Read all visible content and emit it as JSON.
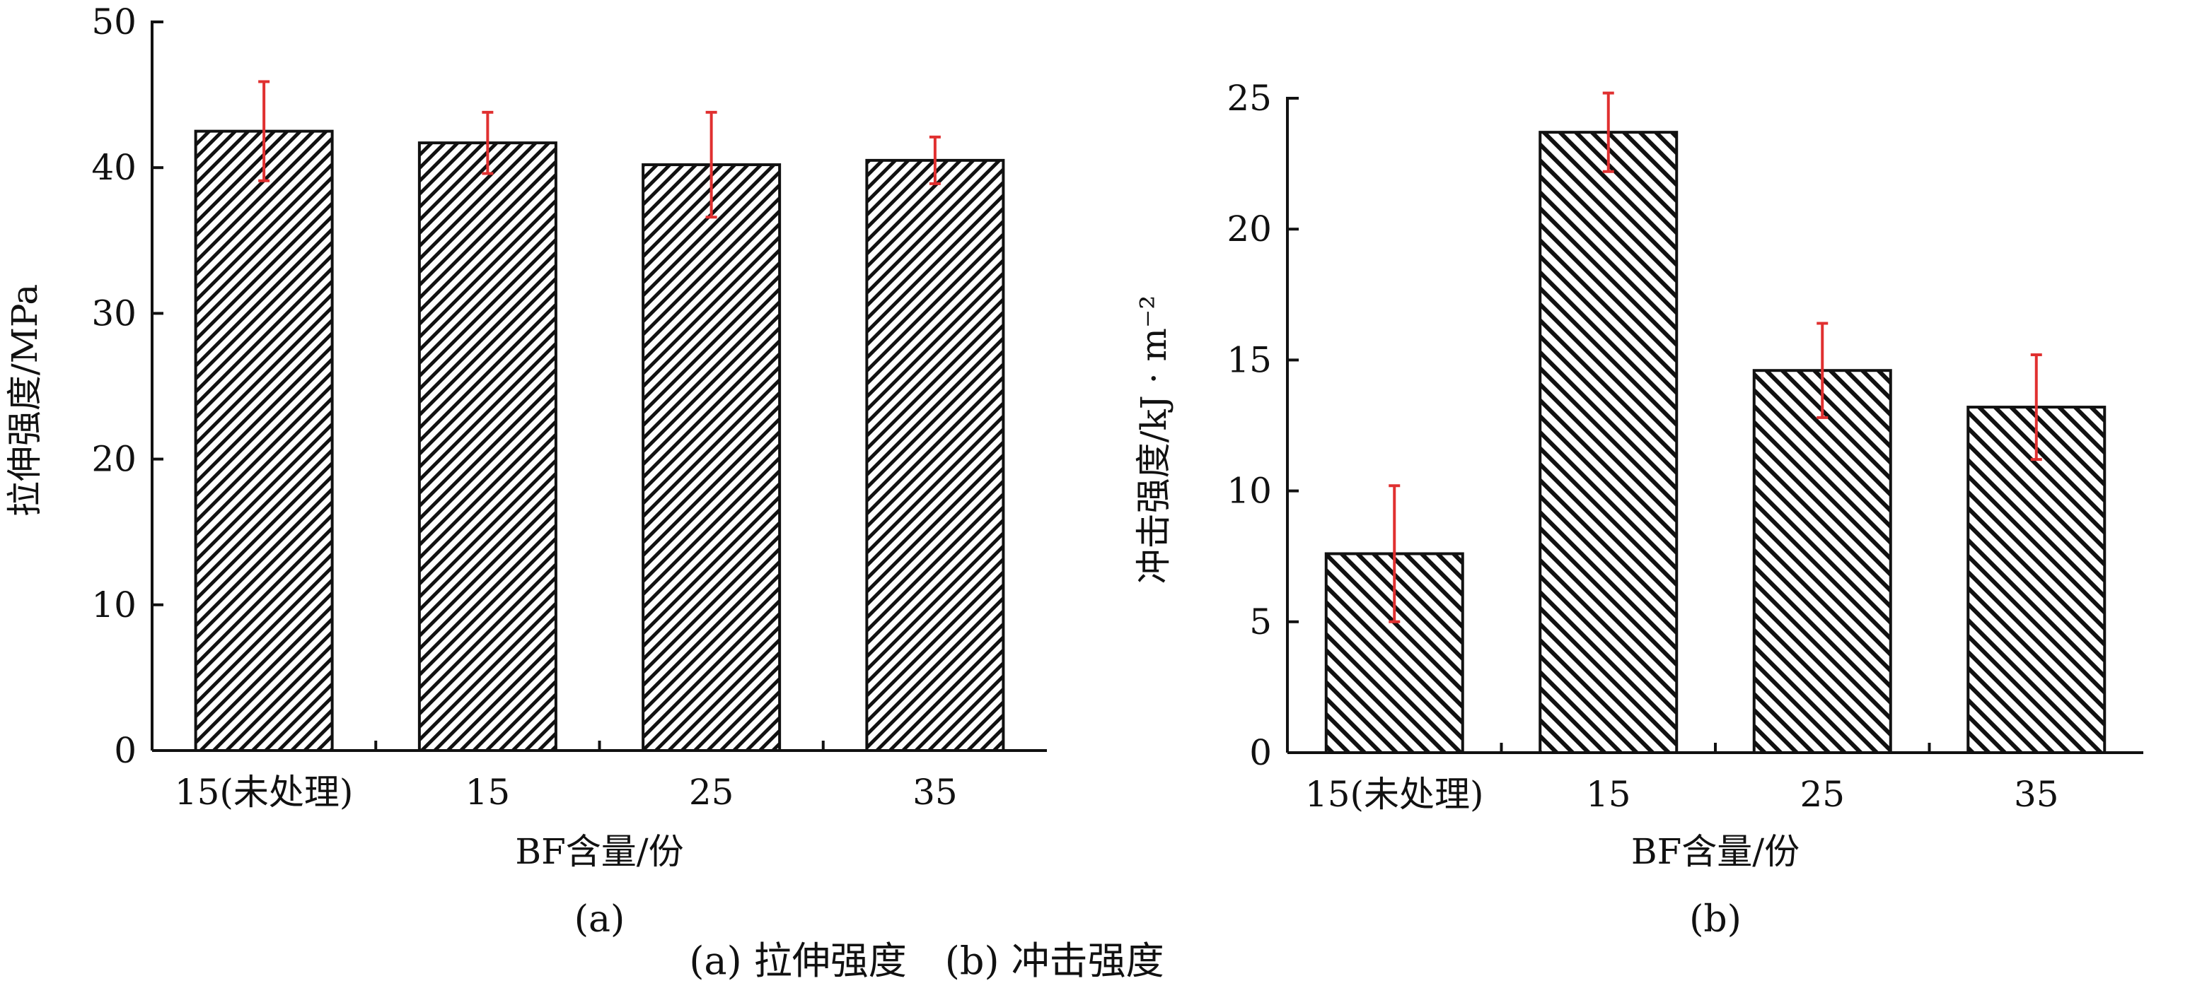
{
  "colors": {
    "bar_fill": "#ffffff",
    "hatch": "#111111",
    "axis": "#111111",
    "error_bar": "#e03030"
  },
  "chart_data": [
    {
      "type": "bar",
      "panel_label": "(a)",
      "xlabel": "BF含量/份",
      "ylabel": "拉伸强度/MPa",
      "categories": [
        "15(未处理)",
        "15",
        "25",
        "35"
      ],
      "values": [
        42.5,
        41.7,
        40.2,
        40.5
      ],
      "errors": [
        3.4,
        2.1,
        3.6,
        1.6
      ],
      "ylim": [
        0,
        50
      ],
      "yticks": [
        0,
        10,
        20,
        30,
        40,
        50
      ],
      "hatch": "dense-diagonal",
      "grid": false,
      "legend": "none"
    },
    {
      "type": "bar",
      "panel_label": "(b)",
      "xlabel": "BF含量/份",
      "ylabel": "冲击强度/kJ · m⁻²",
      "categories": [
        "15(未处理)",
        "15",
        "25",
        "35"
      ],
      "values": [
        7.6,
        23.7,
        14.6,
        13.2
      ],
      "errors": [
        2.6,
        1.5,
        1.8,
        2.0
      ],
      "ylim": [
        0,
        25
      ],
      "yticks": [
        0,
        5,
        10,
        15,
        20,
        25
      ],
      "hatch": "diagonal",
      "grid": false,
      "legend": "none"
    }
  ],
  "caption": "(a) 拉伸强度　(b) 冲击强度"
}
